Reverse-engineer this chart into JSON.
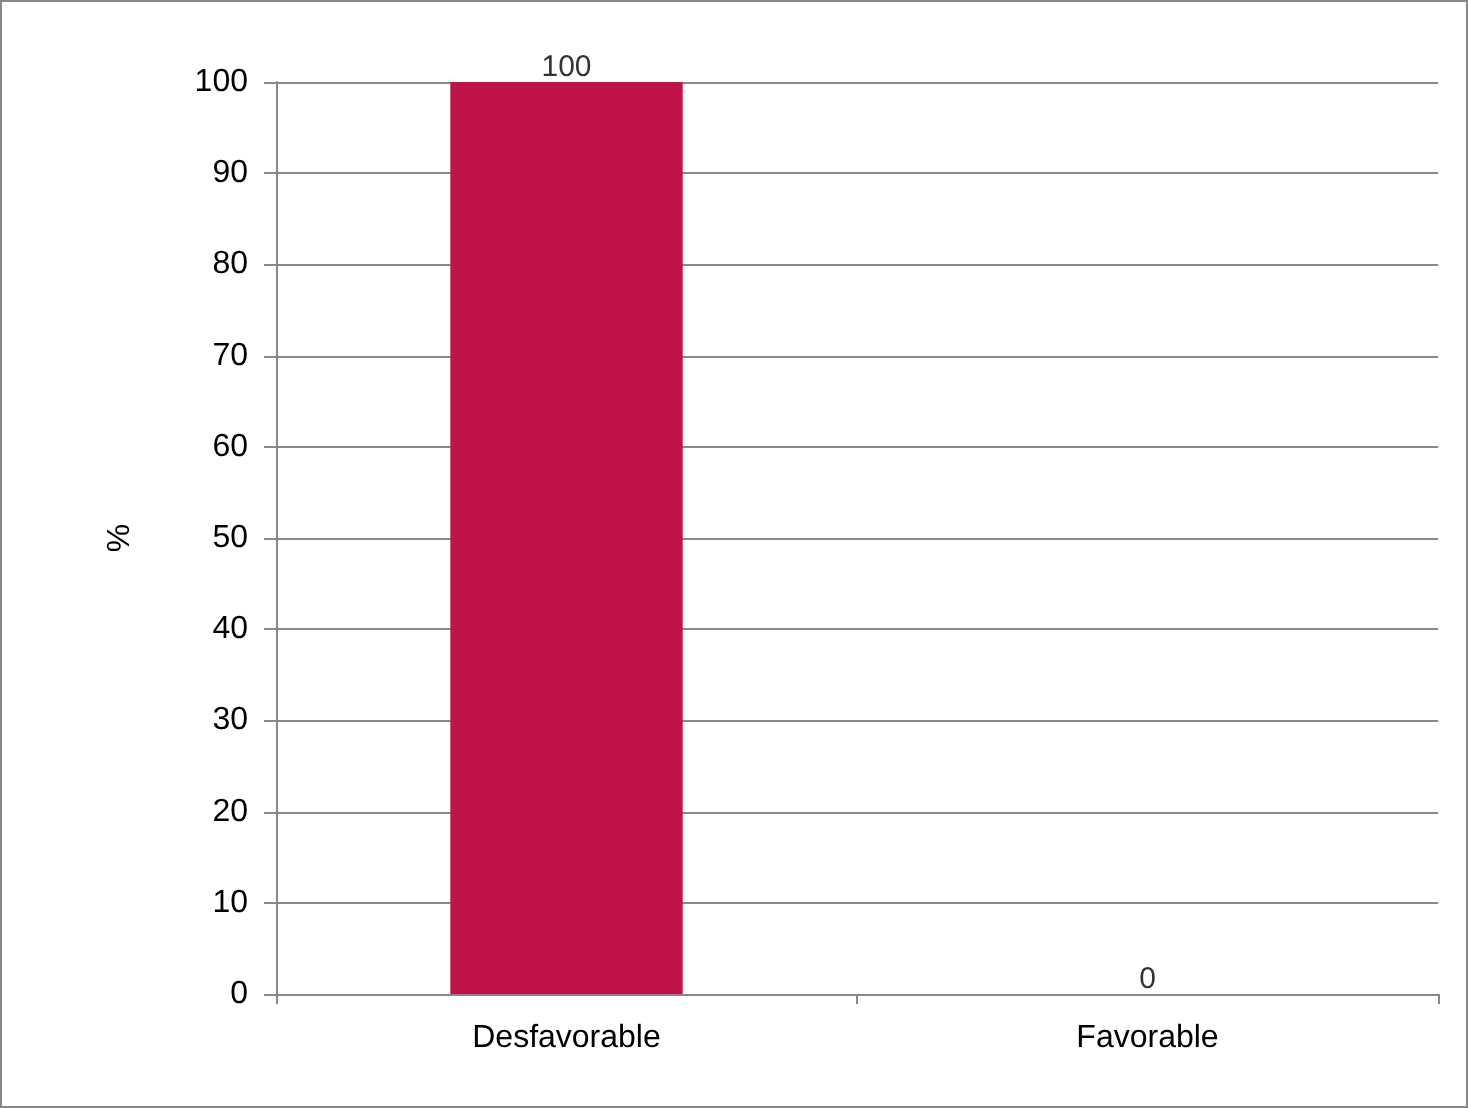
{
  "chart_data": {
    "type": "bar",
    "ylabel": "%",
    "categories": [
      "Desfavorable",
      "Favorable"
    ],
    "values": [
      100,
      0
    ],
    "color": "#c0134a",
    "ylim": [
      0,
      100
    ],
    "yticks": [
      0,
      10,
      20,
      30,
      40,
      50,
      60,
      70,
      80,
      90,
      100
    ],
    "grid": "y",
    "data_labels": true
  }
}
